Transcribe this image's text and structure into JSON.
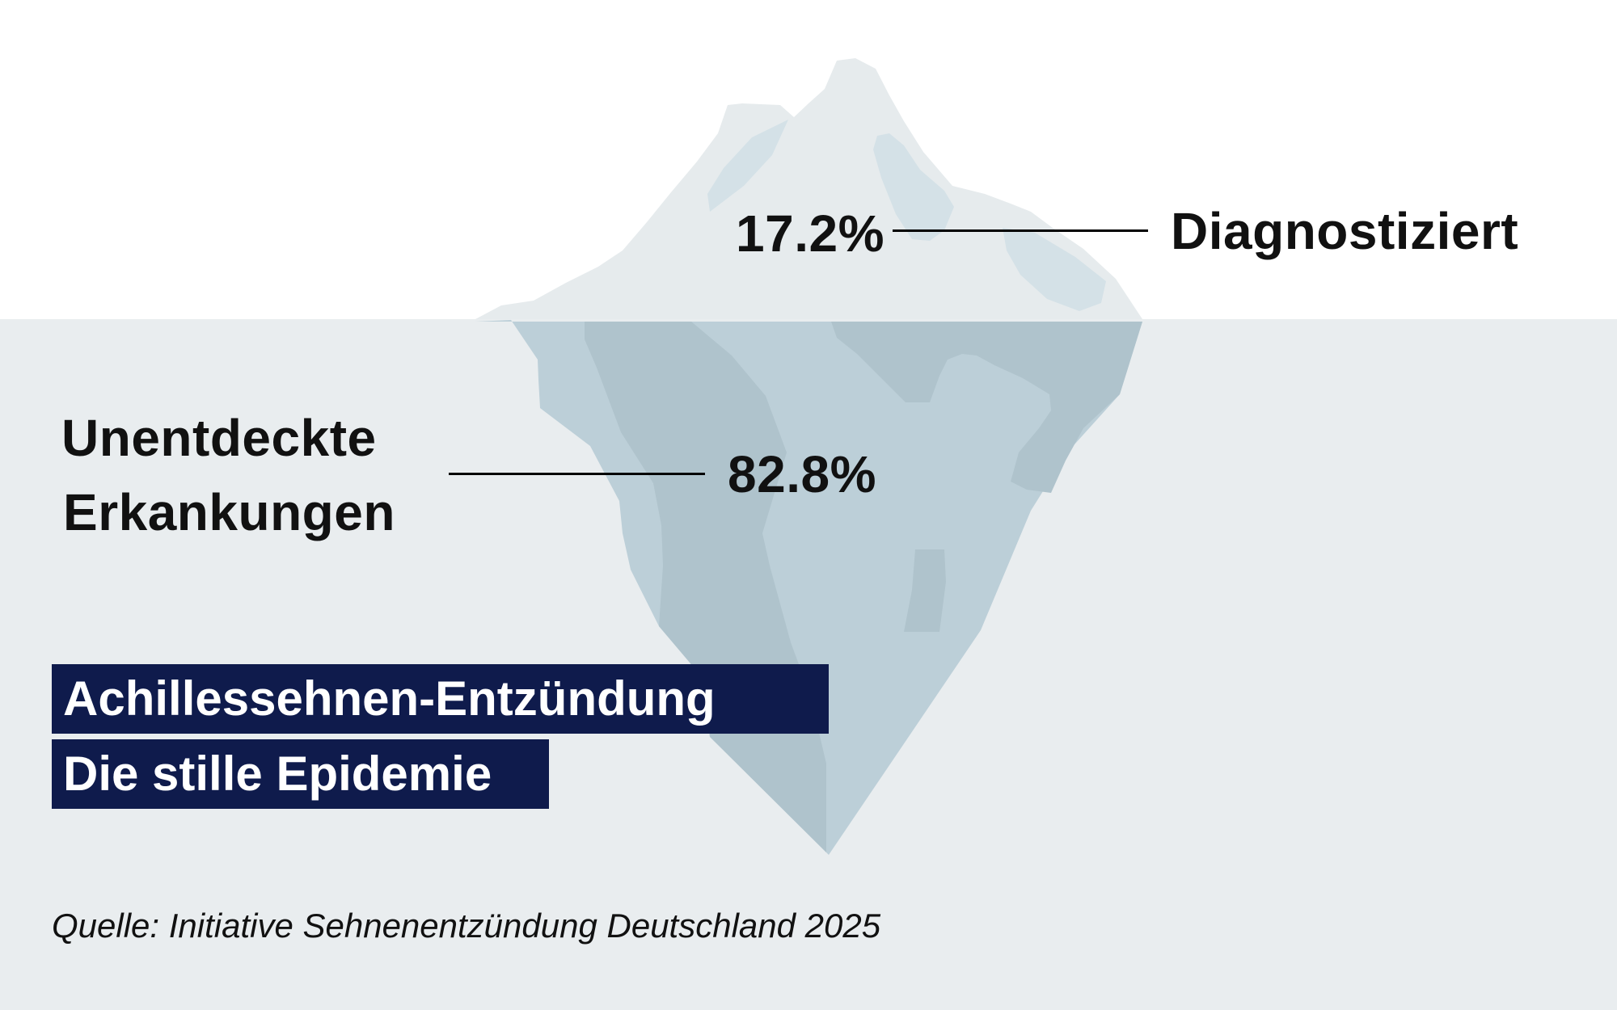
{
  "chart_data": {
    "type": "iceberg",
    "title": "Achillessehnen-Entzündung",
    "subtitle": "Die stille Epidemie",
    "series": [
      {
        "label": "Diagnostiziert",
        "value": 17.2,
        "value_label": "17.2%",
        "position": "above water"
      },
      {
        "label_lines": [
          "Unentdeckte",
          "Erkankungen"
        ],
        "value": 82.8,
        "value_label": "82.8%",
        "position": "below water"
      }
    ],
    "unit": "%",
    "source": "Quelle: Initiative Sehnenentzündung Deutschland 2025"
  },
  "colors": {
    "sky": "#ffffff",
    "water": "#e9edef",
    "ice_top": "#e6ebed",
    "ice_top_shade": "#d4e1e7",
    "ice_bottom": "#bccfd8",
    "ice_bottom_shade": "#afc3cc",
    "title_box": "#0f1b4c",
    "text": "#111111"
  }
}
